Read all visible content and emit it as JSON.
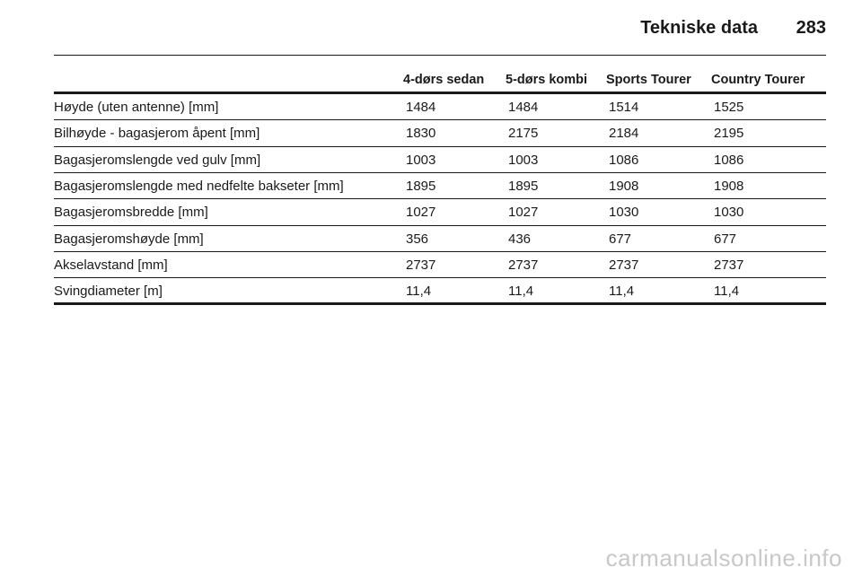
{
  "header": {
    "title": "Tekniske data",
    "page_number": "283"
  },
  "table": {
    "columns": [
      "4-dørs sedan",
      "5-dørs kombi",
      "Sports Tourer",
      "Country Tourer"
    ],
    "rows": [
      [
        "Høyde (uten antenne) [mm]",
        "1484",
        "1484",
        "1514",
        "1525"
      ],
      [
        "Bilhøyde - bagasjerom åpent [mm]",
        "1830",
        "2175",
        "2184",
        "2195"
      ],
      [
        "Bagasjeromslengde ved gulv [mm]",
        "1003",
        "1003",
        "1086",
        "1086"
      ],
      [
        "Bagasjeromslengde med nedfelte bakseter [mm]",
        "1895",
        "1895",
        "1908",
        "1908"
      ],
      [
        "Bagasjeromsbredde [mm]",
        "1027",
        "1027",
        "1030",
        "1030"
      ],
      [
        "Bagasjeromshøyde [mm]",
        "356",
        "436",
        "677",
        "677"
      ],
      [
        "Akselavstand [mm]",
        "2737",
        "2737",
        "2737",
        "2737"
      ],
      [
        "Svingdiameter [m]",
        "11,4",
        "11,4",
        "11,4",
        "11,4"
      ]
    ]
  },
  "watermark": "carmanualsonline.info"
}
